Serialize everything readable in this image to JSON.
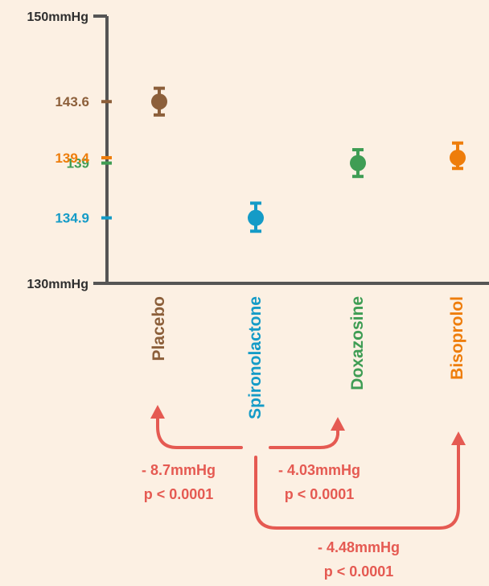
{
  "chart_data": {
    "type": "scatter",
    "ylim": [
      130,
      150
    ],
    "y_axis_end_labels": {
      "top": "150mmHg",
      "bottom": "130mmHg"
    },
    "categories": [
      "Placebo",
      "Spironolactone",
      "Doxazosine",
      "Bisoprolol"
    ],
    "points": [
      {
        "category": "Placebo",
        "value": 143.6,
        "error_low": 142.6,
        "error_high": 144.6,
        "label": "143.6",
        "color": "#8c5f3a"
      },
      {
        "category": "Spironolactone",
        "value": 134.9,
        "error_low": 133.9,
        "error_high": 136.0,
        "label": "134.9",
        "color": "#149bc7"
      },
      {
        "category": "Doxazosine",
        "value": 139.0,
        "error_low": 138.0,
        "error_high": 140.0,
        "label": "139",
        "color": "#3f9d54"
      },
      {
        "category": "Bisoprolol",
        "value": 139.4,
        "error_low": 138.6,
        "error_high": 140.5,
        "label": "139.4",
        "color": "#ee7d0b"
      }
    ],
    "comparisons": [
      {
        "from": "Spironolactone",
        "to": "Placebo",
        "difference": "- 8.7mmHg",
        "p_value": "p < 0.0001"
      },
      {
        "from": "Spironolactone",
        "to": "Doxazosine",
        "difference": "- 4.03mmHg",
        "p_value": "p < 0.0001"
      },
      {
        "from": "Spironolactone",
        "to": "Bisoprolol",
        "difference": "- 4.48mmHg",
        "p_value": "p < 0.0001"
      }
    ],
    "grid": false,
    "legend": "none"
  },
  "colors": {
    "axis": "#555555",
    "axis_label": "#2e2e2e",
    "comparison": "#e55a52",
    "background": "#fcf0e3"
  }
}
